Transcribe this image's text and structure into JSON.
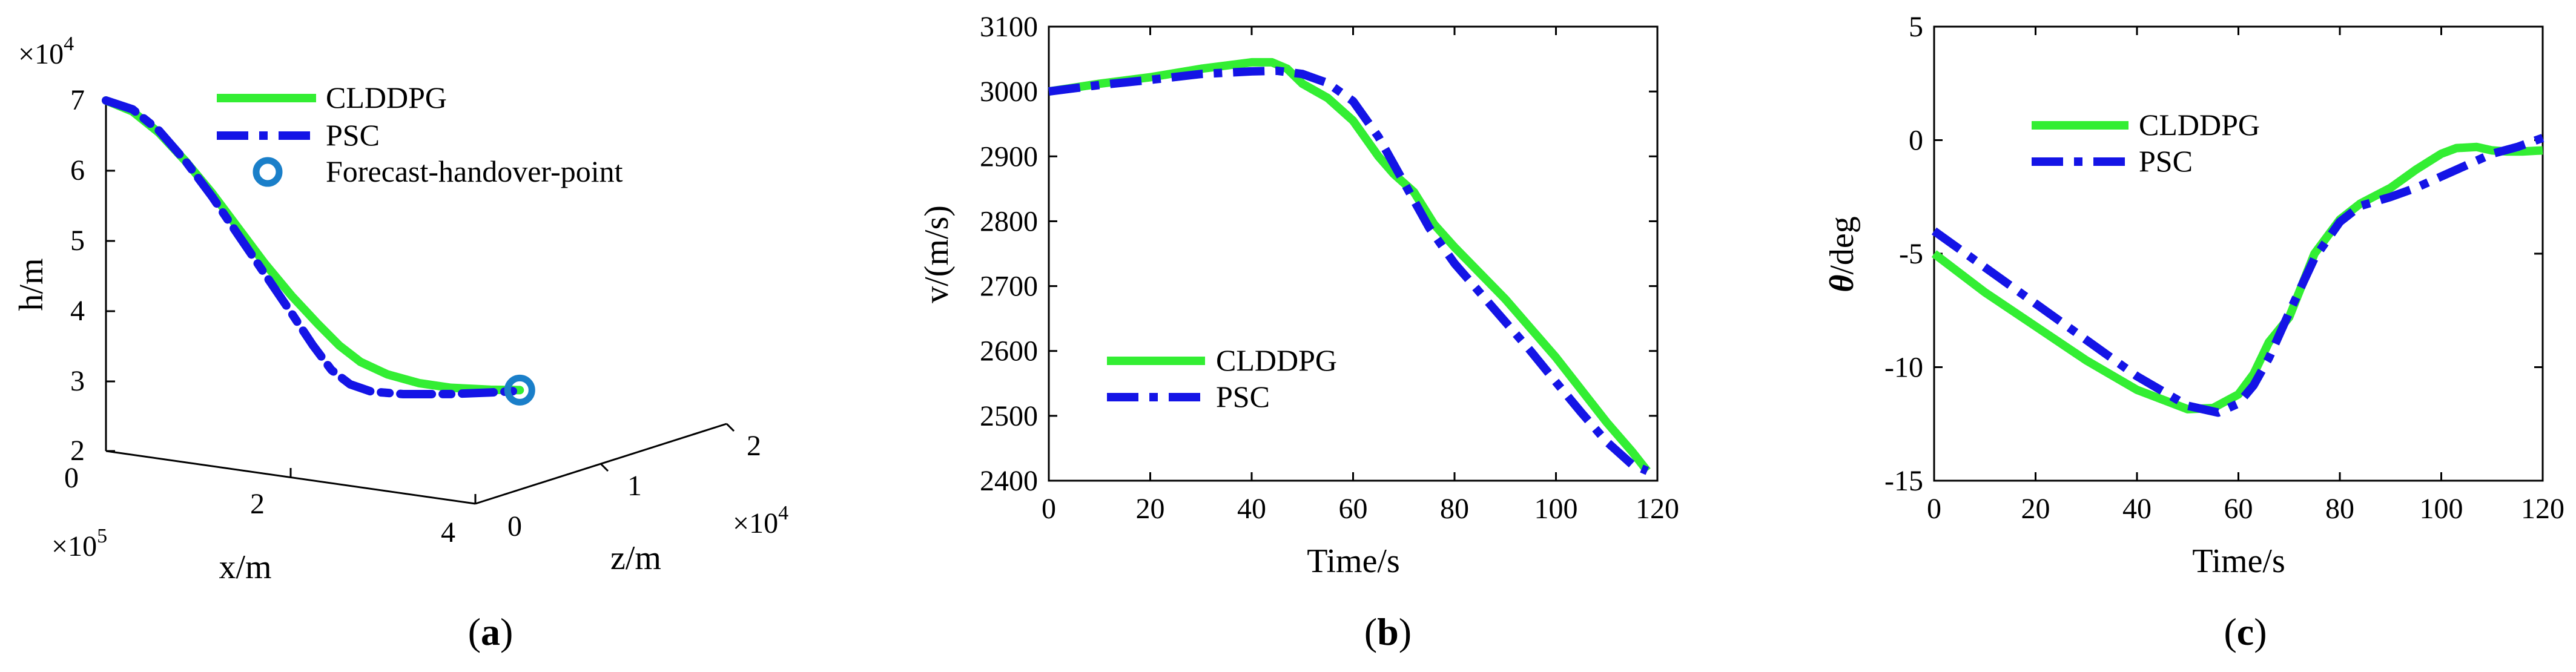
{
  "colors": {
    "clddpg": "#33ee33",
    "psc": "#1414e6",
    "handover_ring": "#1a7fc9",
    "axis": "#000000"
  },
  "chart_data": [
    {
      "id": "a",
      "type": "line3d",
      "caption": "a",
      "zlabel": "h/m",
      "xlabel": "x/m",
      "ylabel": "z/m",
      "h_ticks": [
        "2",
        "3",
        "4",
        "5",
        "6",
        "7"
      ],
      "h_lim": [
        2,
        7
      ],
      "x_ticks": [
        "0",
        "2",
        "4"
      ],
      "y_ticks": [
        "0",
        "1",
        "2"
      ],
      "h_exponent": "×10",
      "h_exponent_power": "4",
      "x_exponent": "×10",
      "x_exponent_power": "5",
      "z_exponent": "×10",
      "z_exponent_power": "4",
      "legend": [
        "CLDDPG",
        "PSC",
        "Forecast-handover-point"
      ],
      "series": [
        {
          "name": "CLDDPG",
          "style": "solid",
          "points": [
            [
              0,
              7.0
            ],
            [
              0.1,
              6.85
            ],
            [
              0.2,
              6.55
            ],
            [
              0.3,
              6.15
            ],
            [
              0.4,
              5.7
            ],
            [
              0.5,
              5.2
            ],
            [
              0.6,
              4.7
            ],
            [
              0.7,
              4.25
            ],
            [
              0.8,
              3.85
            ],
            [
              0.88,
              3.55
            ],
            [
              0.96,
              3.32
            ],
            [
              1.06,
              3.15
            ],
            [
              1.18,
              3.03
            ],
            [
              1.3,
              2.97
            ],
            [
              1.45,
              2.95
            ],
            [
              1.56,
              2.95
            ]
          ]
        },
        {
          "name": "PSC",
          "style": "dashdot",
          "points": [
            [
              0,
              7.0
            ],
            [
              0.1,
              6.88
            ],
            [
              0.2,
              6.58
            ],
            [
              0.3,
              6.15
            ],
            [
              0.4,
              5.65
            ],
            [
              0.5,
              5.1
            ],
            [
              0.6,
              4.55
            ],
            [
              0.7,
              4.0
            ],
            [
              0.78,
              3.55
            ],
            [
              0.85,
              3.2
            ],
            [
              0.92,
              3.0
            ],
            [
              1.0,
              2.9
            ],
            [
              1.12,
              2.87
            ],
            [
              1.3,
              2.88
            ],
            [
              1.45,
              2.91
            ],
            [
              1.56,
              2.94
            ]
          ]
        }
      ],
      "handover_point": [
        1.56,
        2.95
      ]
    },
    {
      "id": "b",
      "type": "line",
      "caption": "b",
      "xlabel": "Time/s",
      "ylabel": "v/(m/s)",
      "xlim": [
        0,
        120
      ],
      "ylim": [
        2400,
        3100
      ],
      "x_ticks": [
        0,
        20,
        40,
        60,
        80,
        100,
        120
      ],
      "y_ticks": [
        2400,
        2500,
        2600,
        2700,
        2800,
        2900,
        3000,
        3100
      ],
      "legend": [
        "CLDDPG",
        "PSC"
      ],
      "series": [
        {
          "name": "CLDDPG",
          "style": "solid",
          "x": [
            0,
            10,
            20,
            30,
            40,
            44,
            47,
            50,
            55,
            60,
            65,
            68,
            72,
            76,
            80,
            85,
            90,
            95,
            100,
            105,
            110,
            115,
            118
          ],
          "y": [
            3000,
            3012,
            3022,
            3035,
            3045,
            3045,
            3035,
            3012,
            2990,
            2955,
            2900,
            2873,
            2845,
            2795,
            2760,
            2720,
            2680,
            2635,
            2590,
            2540,
            2490,
            2445,
            2415
          ]
        },
        {
          "name": "PSC",
          "style": "dashdot",
          "x": [
            0,
            10,
            20,
            30,
            40,
            45,
            50,
            55,
            60,
            65,
            70,
            75,
            80,
            85,
            90,
            95,
            100,
            105,
            110,
            115,
            118
          ],
          "y": [
            3000,
            3010,
            3018,
            3027,
            3031,
            3032,
            3027,
            3013,
            2985,
            2930,
            2860,
            2790,
            2735,
            2690,
            2645,
            2600,
            2552,
            2505,
            2460,
            2425,
            2415
          ]
        }
      ]
    },
    {
      "id": "c",
      "type": "line",
      "caption": "c",
      "xlabel": "Time/s",
      "ylabel": "θ/deg",
      "ylabel_symbol": "θ",
      "ylabel_unit": "/deg",
      "xlim": [
        0,
        120
      ],
      "ylim": [
        -15,
        5
      ],
      "x_ticks": [
        0,
        20,
        40,
        60,
        80,
        100,
        120
      ],
      "y_ticks": [
        -15,
        -10,
        -5,
        0,
        5
      ],
      "legend": [
        "CLDDPG",
        "PSC"
      ],
      "series": [
        {
          "name": "CLDDPG",
          "style": "solid",
          "x": [
            0,
            10,
            20,
            30,
            40,
            50,
            55,
            60,
            63,
            66,
            70,
            75,
            80,
            84,
            90,
            95,
            100,
            103,
            107,
            110,
            113,
            116,
            120
          ],
          "y": [
            -5,
            -6.7,
            -8.2,
            -9.7,
            -11.0,
            -11.85,
            -11.8,
            -11.2,
            -10.3,
            -8.9,
            -7.8,
            -5.0,
            -3.5,
            -2.8,
            -2.1,
            -1.3,
            -0.6,
            -0.35,
            -0.3,
            -0.45,
            -0.5,
            -0.5,
            -0.45
          ]
        },
        {
          "name": "PSC",
          "style": "dashdot",
          "x": [
            0,
            10,
            20,
            30,
            40,
            50,
            56,
            60,
            63,
            66,
            70,
            75,
            80,
            84,
            90,
            95,
            100,
            105,
            110,
            115,
            120
          ],
          "y": [
            -4.0,
            -5.6,
            -7.2,
            -8.8,
            -10.4,
            -11.7,
            -12.0,
            -11.6,
            -10.8,
            -9.6,
            -7.6,
            -5.2,
            -3.6,
            -2.9,
            -2.5,
            -2.1,
            -1.6,
            -1.1,
            -0.6,
            -0.3,
            0.1
          ]
        }
      ]
    }
  ]
}
